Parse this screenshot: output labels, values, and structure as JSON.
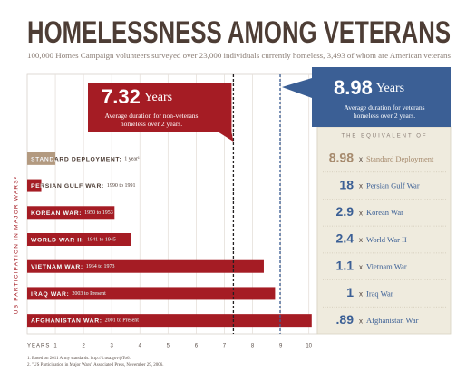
{
  "chart_data": {
    "type": "bar",
    "orientation": "horizontal",
    "title": "HOMELESSNESS AMONG VETERANS",
    "subtitle": "100,000 Homes Campaign volunteers surveyed over 23,000 individuals currently homeless, 3,493 of whom are American veterans",
    "categories": [
      "STANDARD DEPLOYMENT:",
      "PERSIAN GULF WAR:",
      "KOREAN WAR:",
      "WORLD WAR II:",
      "VIETNAM WAR:",
      "IRAQ WAR:",
      "AFGHANISTAN WAR:"
    ],
    "periods": [
      "1 year¹",
      "1990 to 1991",
      "1950 to 1953",
      "1941 to 1945",
      "1964 to 1973",
      "2003 to Present",
      "2001 to Present"
    ],
    "values": [
      1,
      0.5,
      3.1,
      3.7,
      8.4,
      8.8,
      10.1
    ],
    "colors": [
      "#b39a80",
      "#a51c24",
      "#a51c24",
      "#a51c24",
      "#a51c24",
      "#a51c24",
      "#a51c24"
    ],
    "xlabel": "YEARS",
    "ylabel": "US PARTICIPATION IN MAJOR WARS²",
    "xlim": [
      0,
      10.3
    ],
    "xticks": [
      1,
      2,
      3,
      4,
      5,
      6,
      7,
      8,
      9,
      10
    ],
    "grid": true,
    "reference_lines": [
      {
        "value": 7.32,
        "unit": "Years",
        "label": "Average duration for non-veterans homeless over 2 years.",
        "color": "#a51c24",
        "line_color": "#231f20"
      },
      {
        "value": 8.98,
        "unit": "Years",
        "label": "Average duration for veterans homeless over 2 years.",
        "color": "#3b5f95",
        "line_color": "#3b5f95"
      }
    ],
    "equivalent_title": "THE EQUIVALENT OF",
    "equivalents": {
      "numbers": [
        "8.98",
        "18",
        "2.9",
        "2.4",
        "1.1",
        "1",
        ".89"
      ],
      "sign": "x",
      "labels": [
        "Standard Deployment",
        "Persian Gulf War",
        "Korean War",
        "World War II",
        "Vietnam War",
        "Iraq War",
        "Afghanistan War"
      ],
      "colors": [
        "#a68a6d",
        "#3b5f95",
        "#3b5f95",
        "#3b5f95",
        "#3b5f95",
        "#3b5f95",
        "#3b5f95"
      ]
    },
    "footnotes": [
      "1. Based on 2011 Army standards. http://1.usa.gov/pTo6.",
      "2. \"US Participation in Major Wars\" Associated Press, November 29, 2006."
    ]
  }
}
